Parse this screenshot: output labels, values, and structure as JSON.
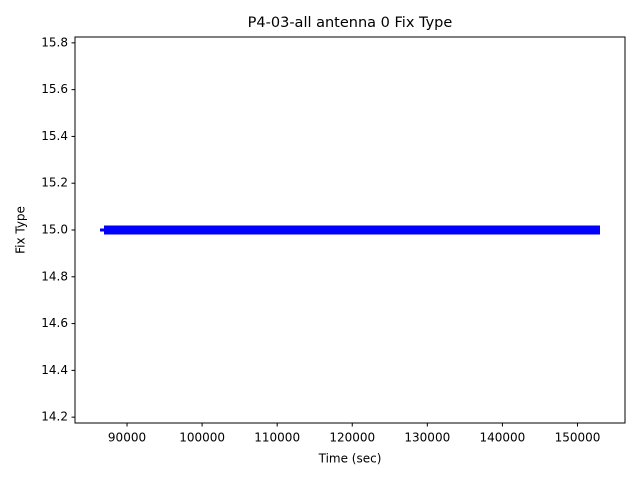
{
  "chart_data": {
    "type": "line",
    "title": "P4-03-all antenna 0 Fix Type",
    "x_label": "Time (sec)",
    "y_label": "Fix Type",
    "x": [
      86400,
      153000
    ],
    "series": [
      {
        "color": "#0000ff",
        "values": [
          15,
          15
        ]
      }
    ],
    "xlim": [
      83070,
      156330
    ],
    "xticks": [
      90000,
      100000,
      110000,
      120000,
      130000,
      140000,
      150000
    ],
    "ylim": [
      14.175,
      15.825
    ],
    "yticks": [
      14.2,
      14.4,
      14.6,
      14.8,
      {
        "value": 15,
        "label": "15.0"
      },
      15.2,
      15.4,
      15.6,
      15.8
    ],
    "grid": false
  }
}
